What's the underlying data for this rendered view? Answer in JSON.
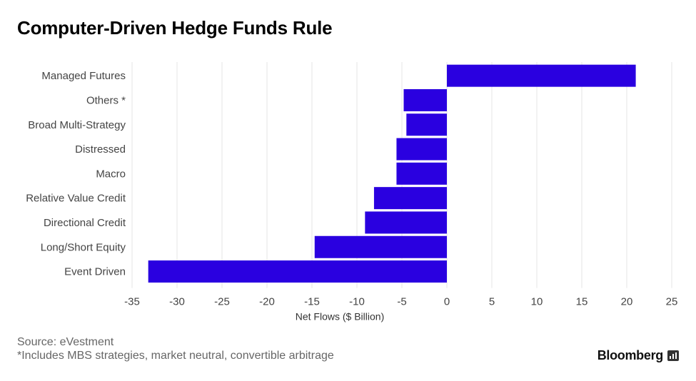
{
  "title": "Computer-Driven Hedge Funds Rule",
  "source": "Source: eVestment",
  "footnote": "*Includes MBS strategies, market neutral, convertible arbitrage",
  "brand": {
    "name": "Bloomberg",
    "icon": "bloomberg-chart-icon"
  },
  "colors": {
    "bar": "#2a00e0",
    "grid": "#e6e6e6",
    "text": "#444444"
  },
  "chart_data": {
    "type": "bar",
    "orientation": "horizontal",
    "categories": [
      "Managed Futures",
      "Others *",
      "Broad Multi-Strategy",
      "Distressed",
      "Macro",
      "Relative Value Credit",
      "Directional Credit",
      "Long/Short Equity",
      "Event Driven"
    ],
    "values": [
      21,
      -4.8,
      -4.5,
      -5.6,
      -5.6,
      -8.1,
      -9.1,
      -14.7,
      -33.2
    ],
    "xlabel": "Net Flows ($ Billion)",
    "xlim": [
      -35,
      25
    ],
    "xticks": [
      -35,
      -30,
      -25,
      -20,
      -15,
      -10,
      -5,
      0,
      5,
      10,
      15,
      20,
      25
    ],
    "xtick_labels": [
      "-35",
      "-30",
      "-25",
      "-20",
      "-15",
      "-10",
      "-5",
      "0",
      "5",
      "10",
      "15",
      "20",
      "25"
    ],
    "grid": true
  }
}
